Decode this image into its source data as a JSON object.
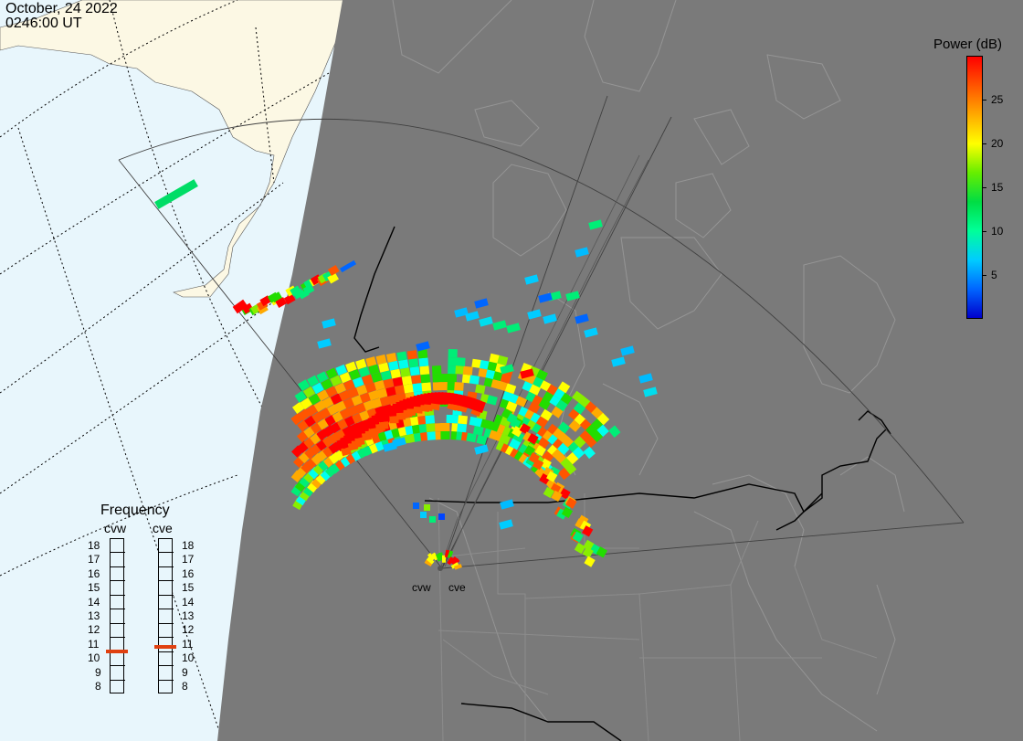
{
  "header": {
    "date": "October, 24 2022",
    "time": "0246:00 UT"
  },
  "colors": {
    "ocean": "#e8f6fc",
    "land": "#fcf8e4",
    "night": "#7a7a7a",
    "coast_dark": "#9a9a9a",
    "border": "#000000",
    "marker": "#e04010"
  },
  "colorbar": {
    "title": "Power (dB)",
    "min": 0,
    "max": 30,
    "ticks": [
      "5",
      "10",
      "15",
      "20",
      "25"
    ],
    "tick_values": [
      5,
      10,
      15,
      20,
      25
    ],
    "gradient": [
      "#0000cc",
      "#0066ff",
      "#00ccff",
      "#00ff99",
      "#00dd44",
      "#66ee00",
      "#ffff00",
      "#ffaa00",
      "#ff5500",
      "#ff0000"
    ]
  },
  "frequency": {
    "title": "Frequency",
    "levels": [
      "18",
      "17",
      "16",
      "15",
      "14",
      "13",
      "12",
      "11",
      "10",
      "9",
      "8"
    ],
    "radars": [
      {
        "name": "cvw",
        "freq_mhz": 10.5
      },
      {
        "name": "cve",
        "freq_mhz": 10.8
      }
    ]
  },
  "radar_sites": {
    "west_label": "cvw",
    "east_label": "cve"
  }
}
